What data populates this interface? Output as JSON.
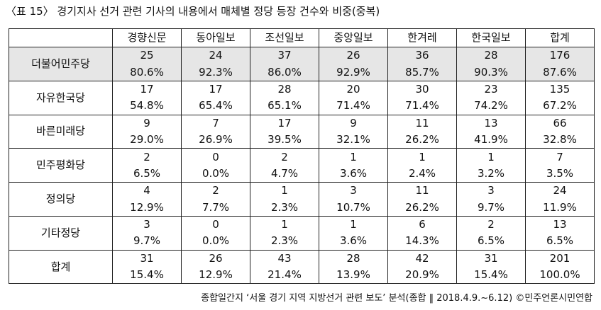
{
  "header": {
    "title": "〈표 15〉 경기지사 선거 관련 기사의 내용에서 매체별 정당 등장 건수와 비중(중복)"
  },
  "table": {
    "columns": [
      "경향신문",
      "동아일보",
      "조선일보",
      "중앙일보",
      "한겨레",
      "한국일보",
      "합계"
    ],
    "rows": [
      {
        "party": "더불어민주당",
        "counts": [
          25,
          24,
          37,
          26,
          36,
          28,
          176
        ],
        "percents": [
          "80.6%",
          "92.3%",
          "86.0%",
          "92.9%",
          "85.7%",
          "90.3%",
          "87.6%"
        ]
      },
      {
        "party": "자유한국당",
        "counts": [
          17,
          17,
          28,
          20,
          30,
          23,
          135
        ],
        "percents": [
          "54.8%",
          "65.4%",
          "65.1%",
          "71.4%",
          "71.4%",
          "74.2%",
          "67.2%"
        ]
      },
      {
        "party": "바른미래당",
        "counts": [
          9,
          7,
          17,
          9,
          11,
          13,
          66
        ],
        "percents": [
          "29.0%",
          "26.9%",
          "39.5%",
          "32.1%",
          "26.2%",
          "41.9%",
          "32.8%"
        ]
      },
      {
        "party": "민주평화당",
        "counts": [
          2,
          0,
          2,
          1,
          1,
          1,
          7
        ],
        "percents": [
          "6.5%",
          "0.0%",
          "4.7%",
          "3.6%",
          "2.4%",
          "3.2%",
          "3.5%"
        ]
      },
      {
        "party": "정의당",
        "counts": [
          4,
          2,
          1,
          3,
          11,
          3,
          24
        ],
        "percents": [
          "12.9%",
          "7.7%",
          "2.3%",
          "10.7%",
          "26.2%",
          "9.7%",
          "11.9%"
        ]
      },
      {
        "party": "기타정당",
        "counts": [
          3,
          0,
          1,
          1,
          6,
          2,
          13
        ],
        "percents": [
          "9.7%",
          "0.0%",
          "2.3%",
          "3.6%",
          "14.3%",
          "6.5%",
          "6.5%"
        ]
      },
      {
        "party": "합계",
        "counts": [
          31,
          26,
          43,
          28,
          42,
          31,
          201
        ],
        "percents": [
          "15.4%",
          "12.9%",
          "21.4%",
          "13.9%",
          "20.9%",
          "15.4%",
          "100.0%"
        ]
      }
    ],
    "note": "종합일간지 ‘서울 경기 지역 지방선거 관련 보도’ 분석(종합 ‖ 2018.4.9.~6.12) ©민주언론시민연합"
  }
}
